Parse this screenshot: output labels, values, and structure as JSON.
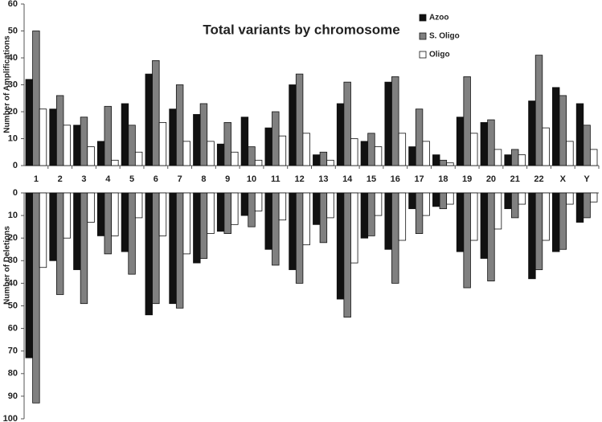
{
  "chart_data": [
    {
      "type": "bar",
      "title": "Total variants by chromosome",
      "ylabel": "Number of Amplifications",
      "categories": [
        "1",
        "2",
        "3",
        "4",
        "5",
        "6",
        "7",
        "8",
        "9",
        "10",
        "11",
        "12",
        "13",
        "14",
        "15",
        "16",
        "17",
        "18",
        "19",
        "20",
        "21",
        "22",
        "X",
        "Y"
      ],
      "series": [
        {
          "name": "Azoo",
          "color": "#111111",
          "values": [
            32,
            21,
            15,
            9,
            23,
            34,
            21,
            19,
            8,
            18,
            14,
            30,
            4,
            23,
            9,
            31,
            7,
            4,
            18,
            16,
            4,
            24,
            29,
            23
          ]
        },
        {
          "name": "S. Oligo",
          "color": "#808080",
          "values": [
            50,
            26,
            18,
            22,
            15,
            39,
            30,
            23,
            16,
            7,
            20,
            34,
            5,
            31,
            12,
            33,
            21,
            2,
            33,
            17,
            6,
            41,
            26,
            15
          ]
        },
        {
          "name": "Oligo",
          "color": "#ffffff",
          "values": [
            21,
            15,
            7,
            2,
            5,
            16,
            9,
            9,
            5,
            2,
            11,
            12,
            2,
            10,
            7,
            12,
            9,
            1,
            12,
            6,
            4,
            14,
            9,
            6
          ]
        }
      ],
      "ylim": [
        0,
        60
      ],
      "yticks": [
        0,
        10,
        20,
        30,
        40,
        50,
        60
      ],
      "legend": "top-right"
    },
    {
      "type": "bar",
      "ylabel": "Number of Deletions",
      "y_inverted": true,
      "series": [
        {
          "color": "#111111",
          "values": [
            73,
            30,
            34,
            19,
            26,
            54,
            49,
            31,
            17,
            10,
            25,
            34,
            14,
            47,
            20,
            25,
            7,
            6,
            26,
            29,
            7,
            38,
            26,
            13
          ]
        },
        {
          "color": "#808080",
          "values": [
            93,
            45,
            49,
            27,
            36,
            49,
            51,
            29,
            18,
            15,
            32,
            40,
            22,
            55,
            19,
            40,
            18,
            7,
            42,
            39,
            11,
            34,
            25,
            11
          ]
        },
        {
          "color": "#ffffff",
          "values": [
            33,
            20,
            13,
            19,
            11,
            19,
            27,
            18,
            14,
            8,
            12,
            23,
            11,
            31,
            10,
            21,
            10,
            5,
            21,
            16,
            5,
            21,
            5,
            4
          ]
        }
      ],
      "ylim": [
        0,
        100
      ],
      "yticks": [
        0,
        10,
        20,
        30,
        40,
        50,
        60,
        70,
        80,
        90,
        100
      ]
    }
  ]
}
